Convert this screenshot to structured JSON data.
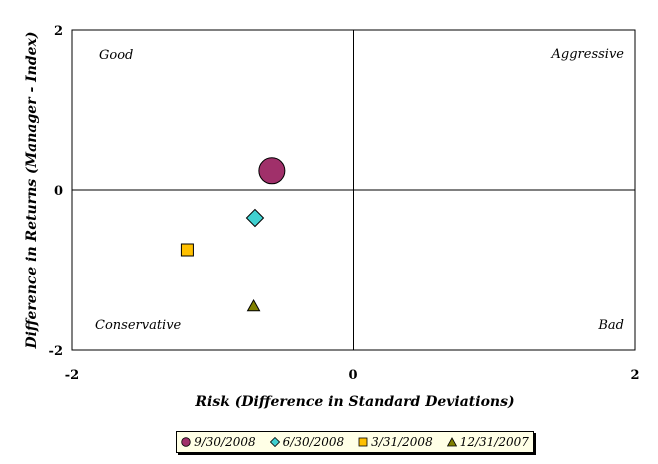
{
  "chart_data": {
    "type": "scatter",
    "title": "",
    "xlabel": "Risk (Difference in Standard Deviations)",
    "ylabel": "Difference in Returns (Manager - Index)",
    "xlim": [
      -2,
      2
    ],
    "ylim": [
      -2,
      2
    ],
    "x_ticks": [
      "-2",
      "0",
      "2"
    ],
    "y_ticks": [
      "2",
      "0",
      "-2"
    ],
    "grid": false,
    "legend_position": "bottom",
    "quadrant_labels": {
      "top_left": "Good",
      "top_right": "Aggressive",
      "bottom_left": "Conservative",
      "bottom_right": "Bad"
    },
    "series": [
      {
        "name": "9/30/2008",
        "marker": "circle",
        "color": "#a0306a",
        "x": -0.58,
        "y": 0.24
      },
      {
        "name": "6/30/2008",
        "marker": "diamond",
        "color": "#40d0d0",
        "x": -0.7,
        "y": -0.35
      },
      {
        "name": "3/31/2008",
        "marker": "square",
        "color": "#ffc000",
        "x": -1.18,
        "y": -0.75
      },
      {
        "name": "12/31/2007",
        "marker": "triangle",
        "color": "#808000",
        "x": -0.71,
        "y": -1.45
      }
    ]
  }
}
